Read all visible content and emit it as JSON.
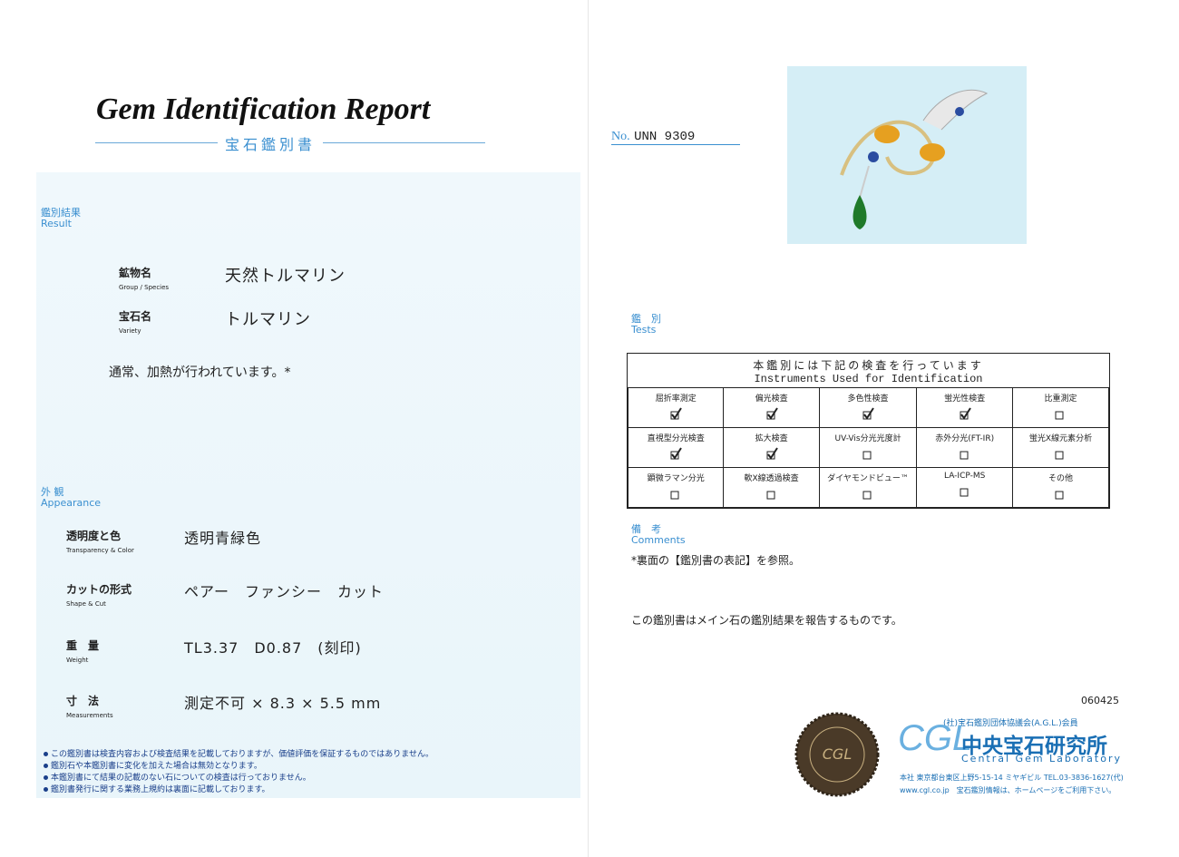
{
  "report": {
    "title": "Gem Identification Report",
    "subtitle": "宝石鑑別書",
    "number_label": "No.",
    "number": "UNN 9309"
  },
  "result": {
    "label": "鑑別結果",
    "label_en": "Result",
    "fields": [
      {
        "label": "鉱物名",
        "label_en": "Group / Species",
        "value": "天然トルマリン"
      },
      {
        "label": "宝石名",
        "label_en": "Variety",
        "value": "トルマリン"
      }
    ],
    "note": "通常、加熱が行われています。*"
  },
  "appearance": {
    "label": "外 観",
    "label_en": "Appearance",
    "fields": [
      {
        "label": "透明度と色",
        "label_en": "Transparency & Color",
        "value": "透明青緑色"
      },
      {
        "label": "カットの形式",
        "label_en": "Shape & Cut",
        "value": "ペアー　ファンシー　カット"
      },
      {
        "label": "重　量",
        "label_en": "Weight",
        "value": "TL3.37　D0.87　(刻印)"
      },
      {
        "label": "寸　法",
        "label_en": "Measurements",
        "value": "測定不可 × 8.3 × 5.5 mm"
      }
    ]
  },
  "footnotes": [
    "この鑑別書は検査内容および検査結果を記載しておりますが、価値評価を保証するものではありません。",
    "鑑別石や本鑑別書に変化を加えた場合は無効となります。",
    "本鑑別書にて結果の記載のない石についての検査は行っておりません。",
    "鑑別書発行に関する業務上規約は裏面に記載しております。"
  ],
  "tests": {
    "label": "鑑　別",
    "label_en": "Tests",
    "header": "本鑑別には下記の検査を行っています",
    "header_en": "Instruments Used for Identification",
    "rows": [
      [
        {
          "name": "屈折率測定",
          "checked": true
        },
        {
          "name": "偏光検査",
          "checked": true
        },
        {
          "name": "多色性検査",
          "checked": true
        },
        {
          "name": "蛍光性検査",
          "checked": true
        },
        {
          "name": "比重測定",
          "checked": false
        }
      ],
      [
        {
          "name": "直視型分光検査",
          "checked": true
        },
        {
          "name": "拡大検査",
          "checked": true
        },
        {
          "name": "UV-Vis分光光度計",
          "checked": false
        },
        {
          "name": "赤外分光(FT-IR)",
          "checked": false
        },
        {
          "name": "蛍光X線元素分析",
          "checked": false
        }
      ],
      [
        {
          "name": "顕微ラマン分光",
          "checked": false
        },
        {
          "name": "軟X線透過検査",
          "checked": false
        },
        {
          "name": "ダイヤモンドビュー™",
          "checked": false
        },
        {
          "name": "LA-ICP-MS",
          "checked": false
        },
        {
          "name": "その他",
          "checked": false
        }
      ]
    ]
  },
  "comments": {
    "label": "備　考",
    "label_en": "Comments",
    "text": "*裏面の【鑑別書の表記】を参照。",
    "statement": "この鑑別書はメイン石の鑑別結果を報告するものです。"
  },
  "lab": {
    "code": "060425",
    "association": "(社)宝石鑑別団体協議会(A.G.L.)会員",
    "logo": "CGL",
    "name": "中央宝石研究所",
    "name_en": "Central Gem Laboratory",
    "address": "本社 東京都台東区上野5-15-14 ミヤギビル TEL.03-3836-1627(代)",
    "web": "www.cgl.co.jp　宝石鑑別情報は、ホームページをご利用下さい。"
  }
}
